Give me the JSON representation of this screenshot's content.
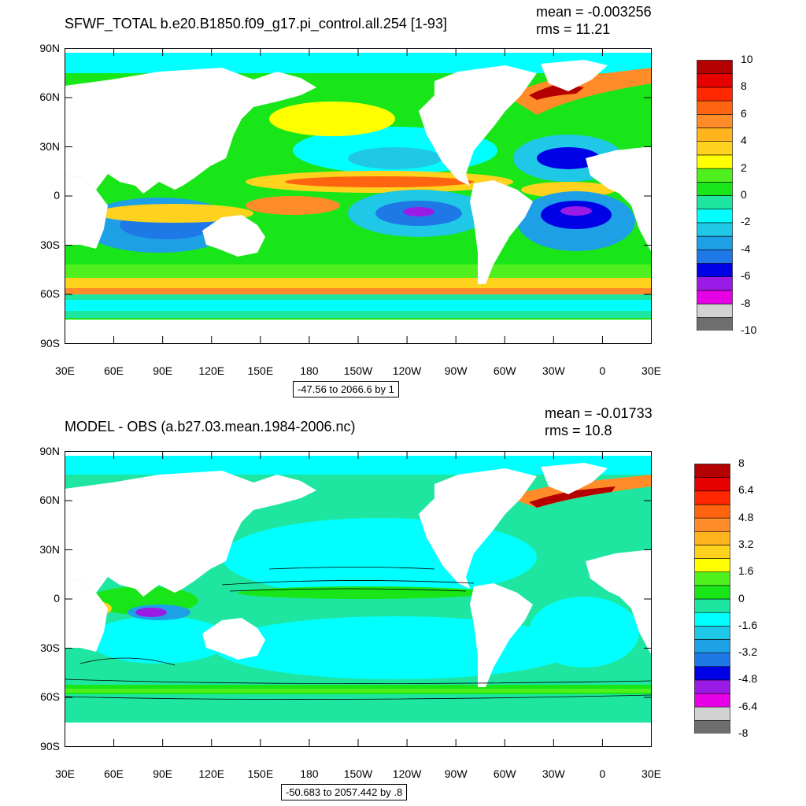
{
  "colors": {
    "ocean_base": "#19e619",
    "land": "#ffffff",
    "scale_top": [
      "#6e6e6e",
      "#d2d2d2",
      "#e600e6",
      "#9b1be6",
      "#0000e6",
      "#1e78e6",
      "#1ea0e6",
      "#1ec8e6",
      "#00ffff",
      "#1ee6a0",
      "#19e619",
      "#50f01e",
      "#ffff00",
      "#ffd21e",
      "#ffb41e",
      "#ff8c28",
      "#ff6410",
      "#ff2800",
      "#e60000",
      "#b40000"
    ],
    "scale_bottom": [
      "#6e6e6e",
      "#d2d2d2",
      "#e600e6",
      "#9b1be6",
      "#0000e6",
      "#1e78e6",
      "#1ea0e6",
      "#1ec8e6",
      "#00ffff",
      "#1ee6a0",
      "#19e619",
      "#50f01e",
      "#ffff00",
      "#ffd21e",
      "#ffb41e",
      "#ff8c28",
      "#ff6410",
      "#ff2800",
      "#e60000",
      "#b40000"
    ]
  },
  "panels": [
    {
      "title": "SFWF_TOTAL b.e20.B1850.f09_g17.pi_control.all.254 [1-93]",
      "mean": "mean = -0.003256",
      "rms": "rms = 11.21",
      "range": "-47.56 to 2066.6 by 1",
      "lat_labels": [
        "90N",
        "60N",
        "30N",
        "0",
        "30S",
        "60S",
        "90S"
      ],
      "lon_labels": [
        "30E",
        "60E",
        "90E",
        "120E",
        "150E",
        "180",
        "150W",
        "120W",
        "90W",
        "60W",
        "30W",
        "0",
        "30E"
      ],
      "colorbar_labels": [
        "10",
        "8",
        "6",
        "4",
        "2",
        "0",
        "-2",
        "-4",
        "-6",
        "-8",
        "-10"
      ]
    },
    {
      "title": "MODEL - OBS (a.b27.03.mean.1984-2006.nc)",
      "mean": "mean = -0.01733",
      "rms": "rms = 10.8",
      "range": "-50.683 to 2057.442 by .8",
      "lat_labels": [
        "90N",
        "60N",
        "30N",
        "0",
        "30S",
        "60S",
        "90S"
      ],
      "lon_labels": [
        "30E",
        "60E",
        "90E",
        "120E",
        "150E",
        "180",
        "150W",
        "120W",
        "90W",
        "60W",
        "30W",
        "0",
        "30E"
      ],
      "colorbar_labels": [
        "8",
        "6.4",
        "4.8",
        "3.2",
        "1.6",
        "0",
        "-1.6",
        "-3.2",
        "-4.8",
        "-6.4",
        "-8"
      ]
    }
  ]
}
